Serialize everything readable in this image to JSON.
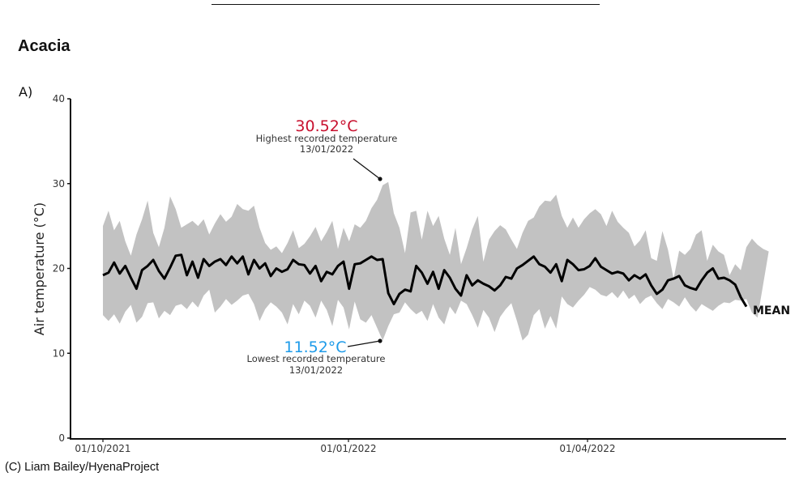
{
  "page": {
    "title": "Acacia",
    "panel_label": "A)",
    "credit": "(C) Liam Bailey/HyenaProject"
  },
  "colors": {
    "band": "#c2c2c2",
    "mean_line": "#000000",
    "max_annotation": "#c8102e",
    "min_annotation": "#1e9be9",
    "axis": "#111111"
  },
  "chart_data": {
    "type": "area",
    "title": "Acacia",
    "xlabel": "",
    "ylabel": "Air temperature (°C)",
    "ylim": [
      0,
      40
    ],
    "yticks": [
      0,
      10,
      20,
      30,
      40
    ],
    "xticks": [
      "01/10/2021",
      "01/01/2022",
      "01/04/2022"
    ],
    "x_start": "01/10/2021",
    "x_step_days": 3,
    "grid": false,
    "legend": "none",
    "series": [
      {
        "name": "max",
        "values": [
          25.0,
          26.8,
          24.5,
          25.6,
          23.2,
          21.5,
          24.0,
          25.8,
          28.0,
          24.2,
          22.5,
          24.8,
          28.5,
          27.0,
          24.8,
          25.2,
          25.6,
          25.0,
          25.8,
          24.0,
          25.3,
          26.4,
          25.5,
          26.1,
          27.6,
          27.0,
          26.8,
          27.4,
          24.8,
          23.0,
          22.2,
          22.6,
          21.8,
          23.0,
          24.5,
          22.4,
          22.9,
          23.8,
          24.9,
          23.2,
          24.3,
          25.6,
          22.3,
          24.8,
          23.2,
          25.2,
          24.8,
          25.6,
          27.1,
          28.1,
          29.8,
          30.2,
          26.5,
          24.8,
          21.8,
          26.6,
          26.8,
          23.4,
          26.8,
          25.0,
          26.2,
          23.5,
          21.6,
          24.8,
          20.5,
          22.4,
          24.6,
          26.2,
          20.8,
          23.4,
          24.4,
          25.1,
          24.6,
          23.4,
          22.3,
          24.2,
          25.6,
          26.0,
          27.3,
          28.0,
          27.9,
          28.7,
          26.2,
          24.8,
          26.0,
          24.8,
          25.8,
          26.5,
          27.0,
          26.4,
          25.0,
          26.8,
          25.5,
          24.8,
          24.2,
          22.6,
          23.3,
          24.5,
          21.2,
          20.9,
          24.4,
          22.2,
          18.8,
          22.1,
          21.6,
          22.3,
          24.0,
          24.5,
          20.9,
          22.8,
          22.0,
          21.6,
          19.2,
          20.5,
          19.8,
          22.5,
          23.5,
          22.8,
          22.3,
          22.0
        ],
        "description": "Daily maximum temperature (upper edge of grey band)"
      },
      {
        "name": "min",
        "values": [
          14.5,
          13.8,
          14.6,
          13.5,
          14.9,
          15.7,
          13.6,
          14.3,
          15.9,
          16.0,
          14.1,
          15.0,
          14.5,
          15.6,
          15.8,
          15.2,
          16.1,
          15.4,
          16.8,
          17.5,
          14.8,
          15.5,
          16.4,
          15.7,
          16.2,
          16.8,
          17.0,
          15.8,
          13.8,
          15.2,
          16.0,
          15.5,
          14.8,
          13.4,
          15.8,
          14.6,
          16.2,
          15.6,
          14.2,
          16.2,
          15.1,
          13.2,
          16.3,
          15.4,
          12.8,
          16.1,
          14.0,
          13.6,
          14.5,
          13.0,
          11.5,
          13.2,
          14.6,
          14.8,
          16.0,
          15.2,
          14.6,
          15.0,
          13.8,
          15.8,
          14.2,
          13.4,
          15.5,
          14.6,
          16.2,
          15.8,
          14.5,
          13.0,
          15.1,
          14.2,
          12.5,
          14.3,
          15.2,
          15.9,
          13.8,
          11.5,
          12.2,
          14.5,
          15.2,
          12.9,
          14.4,
          12.9,
          16.7,
          15.8,
          15.4,
          16.2,
          16.9,
          17.8,
          17.5,
          16.9,
          16.7,
          17.2,
          16.5,
          17.4,
          16.4,
          16.9,
          15.8,
          16.5,
          16.8,
          15.9,
          15.2,
          16.4,
          16.0,
          15.5,
          16.6,
          15.6,
          14.9,
          15.8,
          15.4,
          15.0,
          15.6,
          16.0,
          15.9,
          16.3,
          16.2,
          16.4,
          14.8,
          14.2
        ],
        "description": "Daily minimum temperature (lower edge of grey band)"
      },
      {
        "name": "MEAN",
        "values": [
          19.2,
          19.5,
          20.7,
          19.4,
          20.3,
          18.9,
          17.6,
          19.8,
          20.3,
          21.0,
          19.7,
          18.8,
          20.1,
          21.5,
          21.6,
          19.2,
          20.8,
          18.9,
          21.1,
          20.3,
          20.8,
          21.1,
          20.4,
          21.4,
          20.6,
          21.4,
          19.3,
          21.0,
          20.0,
          20.6,
          19.1,
          20.0,
          19.6,
          19.9,
          21.0,
          20.5,
          20.4,
          19.4,
          20.3,
          18.5,
          19.6,
          19.3,
          20.3,
          20.8,
          17.6,
          20.5,
          20.6,
          21.0,
          21.4,
          21.0,
          21.1,
          17.1,
          15.8,
          17.0,
          17.5,
          17.3,
          20.3,
          19.5,
          18.2,
          19.6,
          17.6,
          19.8,
          18.9,
          17.6,
          16.8,
          19.2,
          18.0,
          18.6,
          18.2,
          17.9,
          17.4,
          18.0,
          19.0,
          18.8,
          20.0,
          20.4,
          20.9,
          21.4,
          20.5,
          20.2,
          19.5,
          20.5,
          18.5,
          21.0,
          20.5,
          19.8,
          19.9,
          20.3,
          21.2,
          20.2,
          19.8,
          19.4,
          19.6,
          19.4,
          18.6,
          19.2,
          18.8,
          19.3,
          18.0,
          17.0,
          17.5,
          18.6,
          18.8,
          19.1,
          18.0,
          17.7,
          17.5,
          18.6,
          19.5,
          20.0,
          18.8,
          18.9,
          18.6,
          18.1,
          16.6,
          15.5
        ],
        "description": "Daily mean temperature (black line)"
      }
    ],
    "annotations": [
      {
        "id": "max",
        "value_label": "30.52°C",
        "value": 30.52,
        "description": "Highest recorded temperature",
        "date": "13/01/2022"
      },
      {
        "id": "min",
        "value_label": "11.52°C",
        "value": 11.52,
        "description": "Lowest recorded temperature",
        "date": "13/01/2022"
      }
    ],
    "series_labels": [
      "MEAN"
    ]
  }
}
